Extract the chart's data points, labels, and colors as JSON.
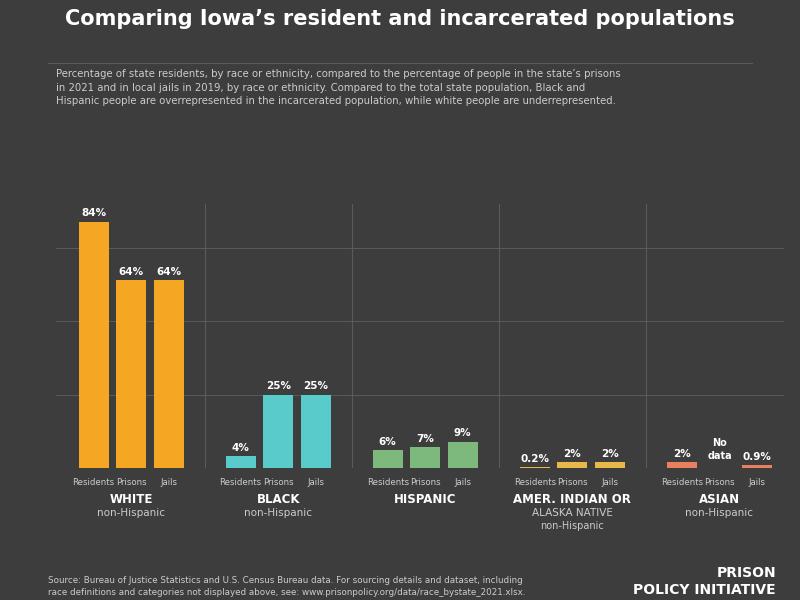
{
  "title": "Comparing Iowa’s resident and incarcerated populations",
  "subtitle": "Percentage of state residents, by race or ethnicity, compared to the percentage of people in the state’s prisons\nin 2021 and in local jails in 2019, by race or ethnicity. Compared to the total state population, Black and\nHispanic people are overrepresented in the incarcerated population, while white people are underrepresented.",
  "source": "Source: Bureau of Justice Statistics and U.S. Census Bureau data. For sourcing details and dataset, including\nrace definitions and categories not displayed above, see: www.prisonpolicy.org/data/race_bystate_2021.xlsx.",
  "background_color": "#3d3d3d",
  "groups": [
    {
      "label_line1": "WHITE",
      "label_line2": "non-Hispanic",
      "label_line3": "",
      "bars": [
        {
          "label": "Residents",
          "value": 84,
          "color": "#f5a623",
          "text": "84%"
        },
        {
          "label": "Prisons",
          "value": 64,
          "color": "#f5a623",
          "text": "64%"
        },
        {
          "label": "Jails",
          "value": 64,
          "color": "#f5a623",
          "text": "64%"
        }
      ]
    },
    {
      "label_line1": "BLACK",
      "label_line2": "non-Hispanic",
      "label_line3": "",
      "bars": [
        {
          "label": "Residents",
          "value": 4,
          "color": "#5acbcb",
          "text": "4%"
        },
        {
          "label": "Prisons",
          "value": 25,
          "color": "#5acbcb",
          "text": "25%"
        },
        {
          "label": "Jails",
          "value": 25,
          "color": "#5acbcb",
          "text": "25%"
        }
      ]
    },
    {
      "label_line1": "HISPANIC",
      "label_line2": "",
      "label_line3": "",
      "bars": [
        {
          "label": "Residents",
          "value": 6,
          "color": "#7db87d",
          "text": "6%"
        },
        {
          "label": "Prisons",
          "value": 7,
          "color": "#7db87d",
          "text": "7%"
        },
        {
          "label": "Jails",
          "value": 9,
          "color": "#7db87d",
          "text": "9%"
        }
      ]
    },
    {
      "label_line1": "AMER. INDIAN OR",
      "label_line2": "ALASKA NATIVE",
      "label_line3": "non-Hispanic",
      "bars": [
        {
          "label": "Residents",
          "value": 0.2,
          "color": "#e8b84b",
          "text": "0.2%"
        },
        {
          "label": "Prisons",
          "value": 2,
          "color": "#e8b84b",
          "text": "2%"
        },
        {
          "label": "Jails",
          "value": 2,
          "color": "#e8b84b",
          "text": "2%"
        }
      ]
    },
    {
      "label_line1": "ASIAN",
      "label_line2": "non-Hispanic",
      "label_line3": "",
      "bars": [
        {
          "label": "Residents",
          "value": 2,
          "color": "#e88060",
          "text": "2%"
        },
        {
          "label": "Prisons",
          "value": null,
          "color": "#e88060",
          "text": "No\ndata"
        },
        {
          "label": "Jails",
          "value": 0.9,
          "color": "#e88060",
          "text": "0.9%"
        }
      ]
    }
  ],
  "ylim": [
    0,
    90
  ],
  "divider_color": "#5a5a5a",
  "text_color": "#ffffff",
  "label_color": "#cccccc"
}
